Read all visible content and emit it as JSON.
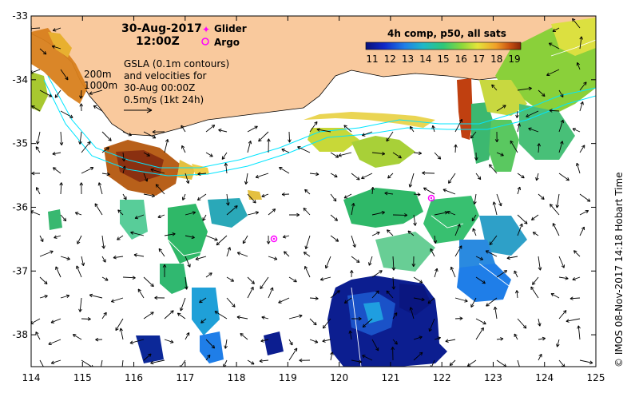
{
  "map": {
    "date": "30-Aug-2017",
    "time": "12:00Z",
    "legend": {
      "glider_label": "Glider",
      "argo_label": "Argo",
      "glider_color": "#ff00ff",
      "argo_color": "#ff00ff"
    },
    "isobaths": {
      "shallow": "200m",
      "deep": "1000m",
      "color": "#00e5ff"
    },
    "gsla_note": {
      "line1": "GSLA (0.1m contours)",
      "line2": "and velocities for",
      "line3": "30-Aug 00:00Z",
      "line4": "0.5m/s (1kt 24h)"
    },
    "colorbar": {
      "title": "4h comp, p50, all sats",
      "ticks": [
        "11",
        "12",
        "13",
        "14",
        "15",
        "16",
        "17",
        "18",
        "19"
      ],
      "colors": [
        "#08107a",
        "#1028c8",
        "#1f7ee8",
        "#1fb8c8",
        "#2ec878",
        "#8bd83a",
        "#e4e43a",
        "#f0a028",
        "#c85010",
        "#8a2808"
      ]
    },
    "axes": {
      "x_ticks": [
        "114",
        "115",
        "116",
        "117",
        "118",
        "119",
        "120",
        "121",
        "122",
        "123",
        "124",
        "125"
      ],
      "y_ticks": [
        "-33",
        "-34",
        "-35",
        "-36",
        "-37",
        "-38"
      ],
      "x_range": [
        114,
        125
      ],
      "y_range": [
        -38.5,
        -33
      ]
    },
    "credit": "© IMOS 08-Nov-2017 14:18 Hobart Time",
    "colors": {
      "land": "#f9c99d",
      "land_edge": "#000000",
      "ocean": "#ffffff"
    },
    "platforms": {
      "argo": [
        {
          "lon": 118.7,
          "lat": -36.5
        },
        {
          "lon": 121.8,
          "lat": -35.85
        }
      ],
      "glider": []
    }
  }
}
